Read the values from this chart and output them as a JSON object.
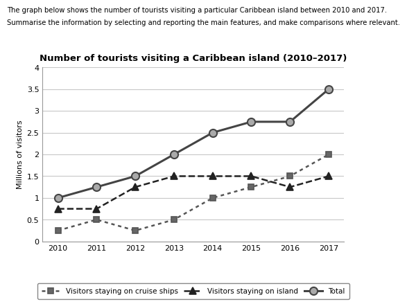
{
  "title": "Number of tourists visiting a Caribbean island (2010–2017)",
  "header_line1": "The graph below shows the number of tourists visiting a particular Caribbean island between 2010 and 2017.",
  "header_line2": "Summarise the information by selecting and reporting the main features, and make comparisons where relevant.",
  "ylabel": "Millions of visitors",
  "years": [
    2010,
    2011,
    2012,
    2013,
    2014,
    2015,
    2016,
    2017
  ],
  "cruise_ships": [
    0.25,
    0.5,
    0.25,
    0.5,
    1.0,
    1.25,
    1.5,
    2.0
  ],
  "island": [
    0.75,
    0.75,
    1.25,
    1.5,
    1.5,
    1.5,
    1.25,
    1.5
  ],
  "total": [
    1.0,
    1.25,
    1.5,
    2.0,
    2.5,
    2.75,
    2.75,
    3.5
  ],
  "ylim": [
    0,
    4
  ],
  "yticks": [
    0,
    0.5,
    1.0,
    1.5,
    2.0,
    2.5,
    3.0,
    3.5,
    4.0
  ],
  "cruise_color": "#555555",
  "island_color": "#222222",
  "total_color": "#444444",
  "legend_labels": [
    "Visitors staying on cruise ships",
    "Visitors staying on island",
    "Total"
  ],
  "marker_total_face": "#aaaaaa",
  "marker_cruise_face": "#666666"
}
